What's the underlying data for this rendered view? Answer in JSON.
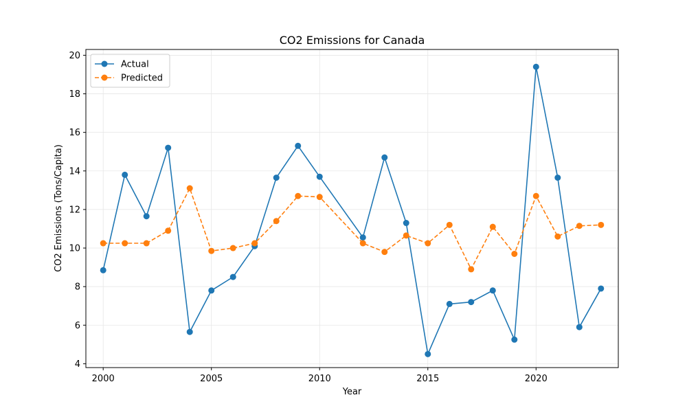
{
  "chart_data": {
    "type": "line",
    "title": "CO2 Emissions for Canada",
    "xlabel": "Year",
    "ylabel": "CO2 Emissions (Tons/Capita)",
    "xlim": [
      1999.2,
      2023.8
    ],
    "ylim": [
      3.8,
      20.3
    ],
    "xticks": [
      2000,
      2005,
      2010,
      2015,
      2020
    ],
    "yticks": [
      4,
      6,
      8,
      10,
      12,
      14,
      16,
      18,
      20
    ],
    "grid": true,
    "legend_position": "top-left",
    "x": [
      2000,
      2001,
      2002,
      2003,
      2004,
      2005,
      2006,
      2007,
      2008,
      2009,
      2010,
      2012,
      2013,
      2014,
      2015,
      2016,
      2017,
      2018,
      2019,
      2020,
      2021,
      2022,
      2023
    ],
    "series": [
      {
        "name": "Actual",
        "color": "#1f77b4",
        "style": "solid",
        "values": [
          8.85,
          13.8,
          11.65,
          15.2,
          5.65,
          7.8,
          8.5,
          10.1,
          13.65,
          15.3,
          13.7,
          10.55,
          14.7,
          11.3,
          4.5,
          7.1,
          7.2,
          7.8,
          5.25,
          19.4,
          13.65,
          5.9,
          7.9
        ]
      },
      {
        "name": "Predicted",
        "color": "#ff7f0e",
        "style": "dashed",
        "values": [
          10.25,
          10.25,
          10.25,
          10.9,
          13.1,
          9.85,
          10.0,
          10.25,
          11.4,
          12.7,
          12.65,
          10.25,
          9.8,
          10.65,
          10.25,
          11.2,
          8.9,
          11.1,
          9.7,
          12.7,
          10.6,
          11.15,
          11.2
        ]
      }
    ]
  }
}
